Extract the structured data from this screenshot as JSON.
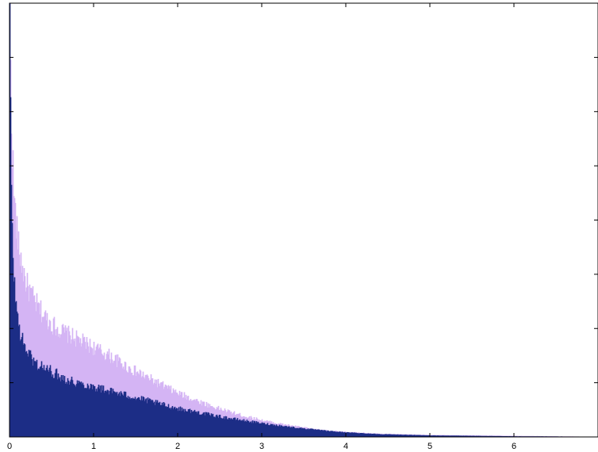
{
  "chart_data": {
    "type": "area",
    "title": "",
    "xlabel": "",
    "ylabel": "",
    "xlim": [
      0,
      7
    ],
    "ylim": [
      0,
      1
    ],
    "grid": false,
    "legend": "none",
    "x_ticks": [
      0,
      1,
      2,
      3,
      4,
      5,
      6
    ],
    "x_tick_labels": [
      "0",
      "1",
      "2",
      "3",
      "4",
      "5",
      "6"
    ],
    "y_ticks": [
      0.125,
      0.25,
      0.375,
      0.5,
      0.625,
      0.75,
      0.875
    ],
    "y_tick_labels_shown": false,
    "series": [
      {
        "color": "#d4b4f4",
        "x": [
          0,
          0.02,
          0.05,
          0.1,
          0.15,
          0.2,
          0.3,
          0.4,
          0.5,
          0.6,
          0.7,
          0.8,
          0.9,
          1.0,
          1.2,
          1.4,
          1.6,
          1.8,
          2.0,
          2.2,
          2.4,
          2.6,
          2.8,
          3.0,
          3.2,
          3.4,
          3.6,
          3.8,
          4.0,
          4.2,
          4.4,
          4.6,
          4.8,
          5.0,
          5.5,
          6.0,
          6.5,
          7.0
        ],
        "values": [
          1.0,
          0.72,
          0.55,
          0.44,
          0.39,
          0.35,
          0.31,
          0.28,
          0.26,
          0.245,
          0.235,
          0.225,
          0.215,
          0.205,
          0.185,
          0.16,
          0.14,
          0.12,
          0.1,
          0.085,
          0.07,
          0.058,
          0.047,
          0.038,
          0.03,
          0.024,
          0.018,
          0.014,
          0.011,
          0.009,
          0.007,
          0.006,
          0.005,
          0.004,
          0.003,
          0.002,
          0.001,
          0.0
        ]
      },
      {
        "color": "#1c2d86",
        "x": [
          0,
          0.02,
          0.05,
          0.1,
          0.15,
          0.2,
          0.3,
          0.4,
          0.5,
          0.6,
          0.7,
          0.8,
          0.9,
          1.0,
          1.2,
          1.4,
          1.6,
          1.8,
          2.0,
          2.2,
          2.4,
          2.6,
          2.8,
          3.0,
          3.2,
          3.4,
          3.6,
          3.8,
          4.0,
          4.2,
          4.4,
          4.6,
          4.8,
          5.0,
          5.5,
          6.0,
          6.5,
          7.0
        ],
        "values": [
          0.98,
          0.52,
          0.36,
          0.26,
          0.22,
          0.2,
          0.17,
          0.16,
          0.15,
          0.14,
          0.13,
          0.125,
          0.12,
          0.115,
          0.105,
          0.095,
          0.085,
          0.075,
          0.065,
          0.058,
          0.05,
          0.043,
          0.037,
          0.031,
          0.026,
          0.021,
          0.017,
          0.013,
          0.01,
          0.008,
          0.006,
          0.005,
          0.004,
          0.003,
          0.002,
          0.001,
          0.0005,
          0.0
        ]
      }
    ]
  }
}
